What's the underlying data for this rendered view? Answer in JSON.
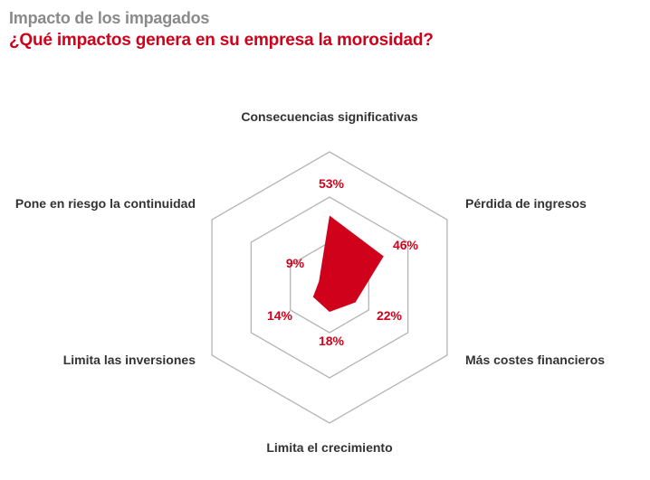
{
  "header": {
    "title": "Impacto de los impagados",
    "subtitle": "¿Qué impactos genera en su empresa la morosidad?"
  },
  "chart_data": {
    "type": "radar",
    "axes": [
      "Consecuencias significativas",
      "Pérdida de ingresos",
      "Más costes financieros",
      "Limita el crecimiento",
      "Limita las inversiones",
      "Pone en riesgo la continuidad"
    ],
    "values": [
      53,
      46,
      22,
      18,
      14,
      9
    ],
    "value_labels": [
      "53%",
      "46%",
      "22%",
      "18%",
      "14%",
      "9%"
    ],
    "range": [
      0,
      100
    ],
    "grid_rings": 3,
    "colors": {
      "fill": "#d0021b",
      "grid": "#b5b5b5",
      "labels": "#333333"
    }
  }
}
